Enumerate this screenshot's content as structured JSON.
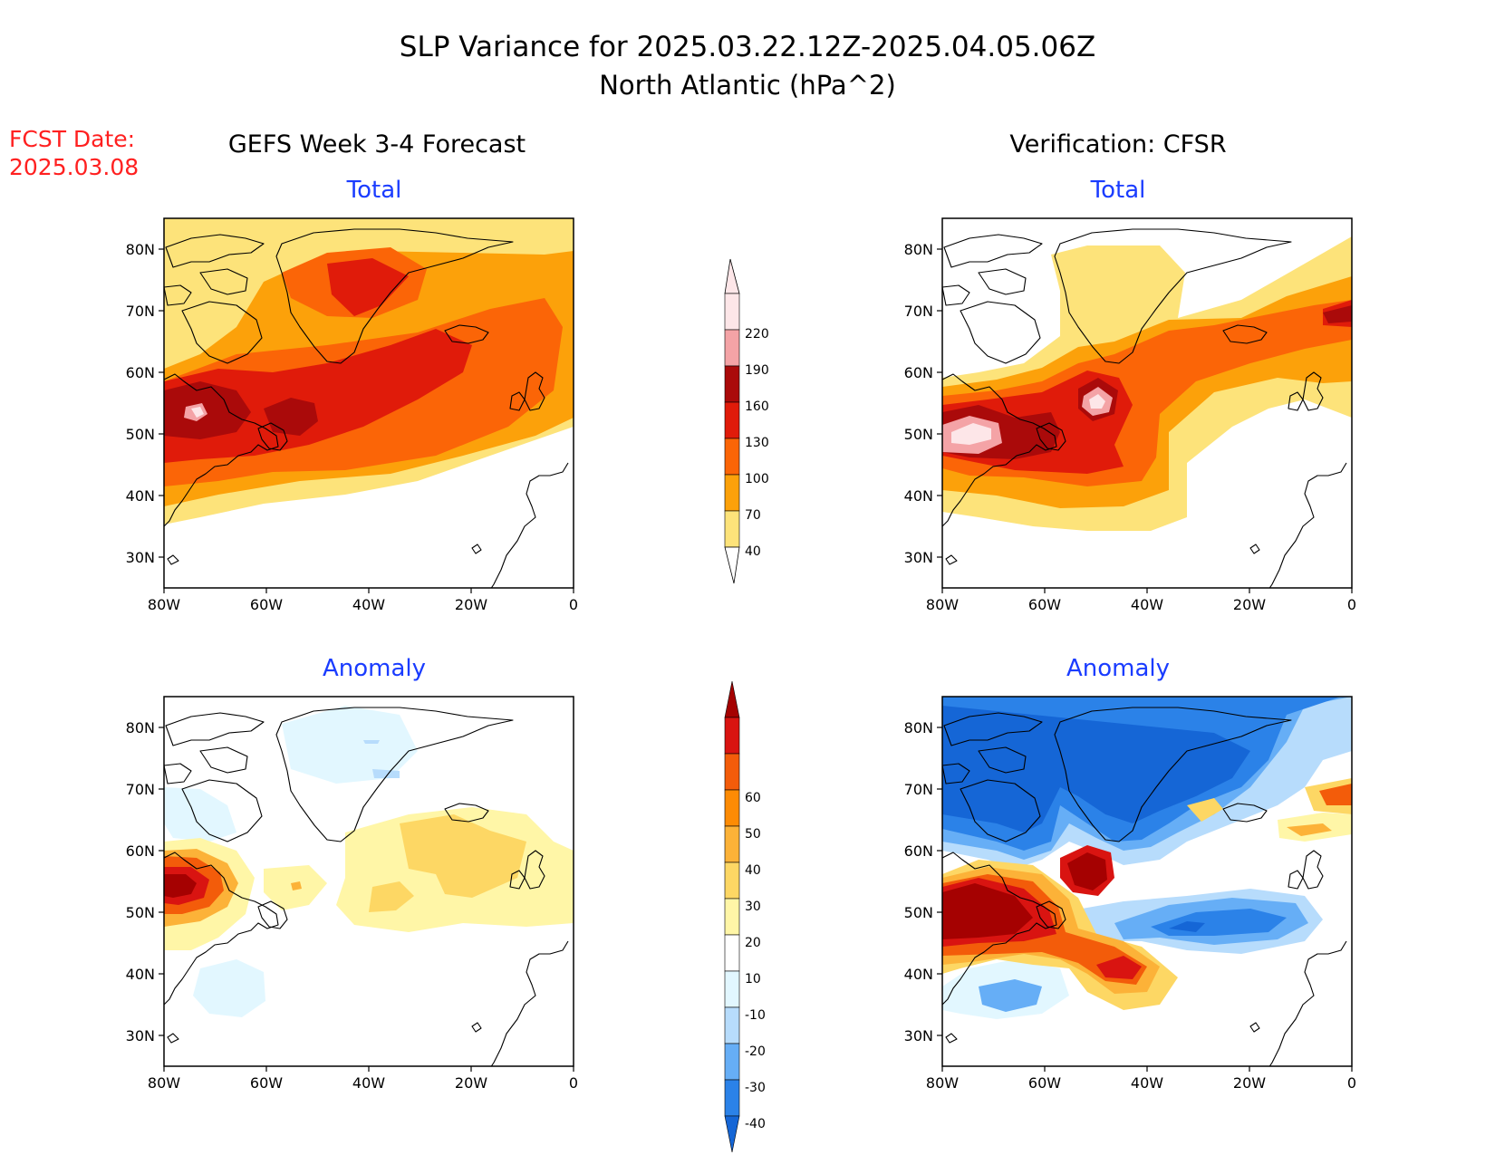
{
  "header": {
    "title_line1": "SLP Variance for 2025.03.22.12Z-2025.04.05.06Z",
    "title_line2": "North Atlantic (hPa^2)",
    "fcst_label": "FCST Date:",
    "fcst_date": "2025.03.08"
  },
  "columns": {
    "left": "GEFS Week 3-4 Forecast",
    "right": "Verification: CFSR"
  },
  "panel_titles": {
    "gefs_total": "Total",
    "cfsr_total": "Total",
    "gefs_anomaly": "Anomaly",
    "cfsr_anomaly": "Anomaly"
  },
  "axes": {
    "lat_ticks": [
      "30N",
      "40N",
      "50N",
      "60N",
      "70N",
      "80N"
    ],
    "lon_ticks": [
      "80W",
      "60W",
      "40W",
      "20W",
      "0"
    ]
  },
  "colorbars": {
    "total": {
      "labels": [
        "40",
        "70",
        "100",
        "130",
        "160",
        "190",
        "220"
      ],
      "colors": [
        "#fde37a",
        "#fca10a",
        "#fb6507",
        "#e01b0a",
        "#aa0a0a",
        "#f4a3a6",
        "#fde6e8"
      ]
    },
    "anomaly": {
      "labels": [
        "-40",
        "-30",
        "-20",
        "-10",
        "10",
        "20",
        "30",
        "40",
        "50",
        "60"
      ],
      "colors": [
        "#1566d6",
        "#2b82e8",
        "#66aef6",
        "#b7dcfc",
        "#e2f7ff",
        "#ffffff",
        "#fff6a7",
        "#fdd764",
        "#fcb238",
        "#fd8b04",
        "#f35c0a",
        "#d91411",
        "#a50101"
      ]
    }
  }
}
